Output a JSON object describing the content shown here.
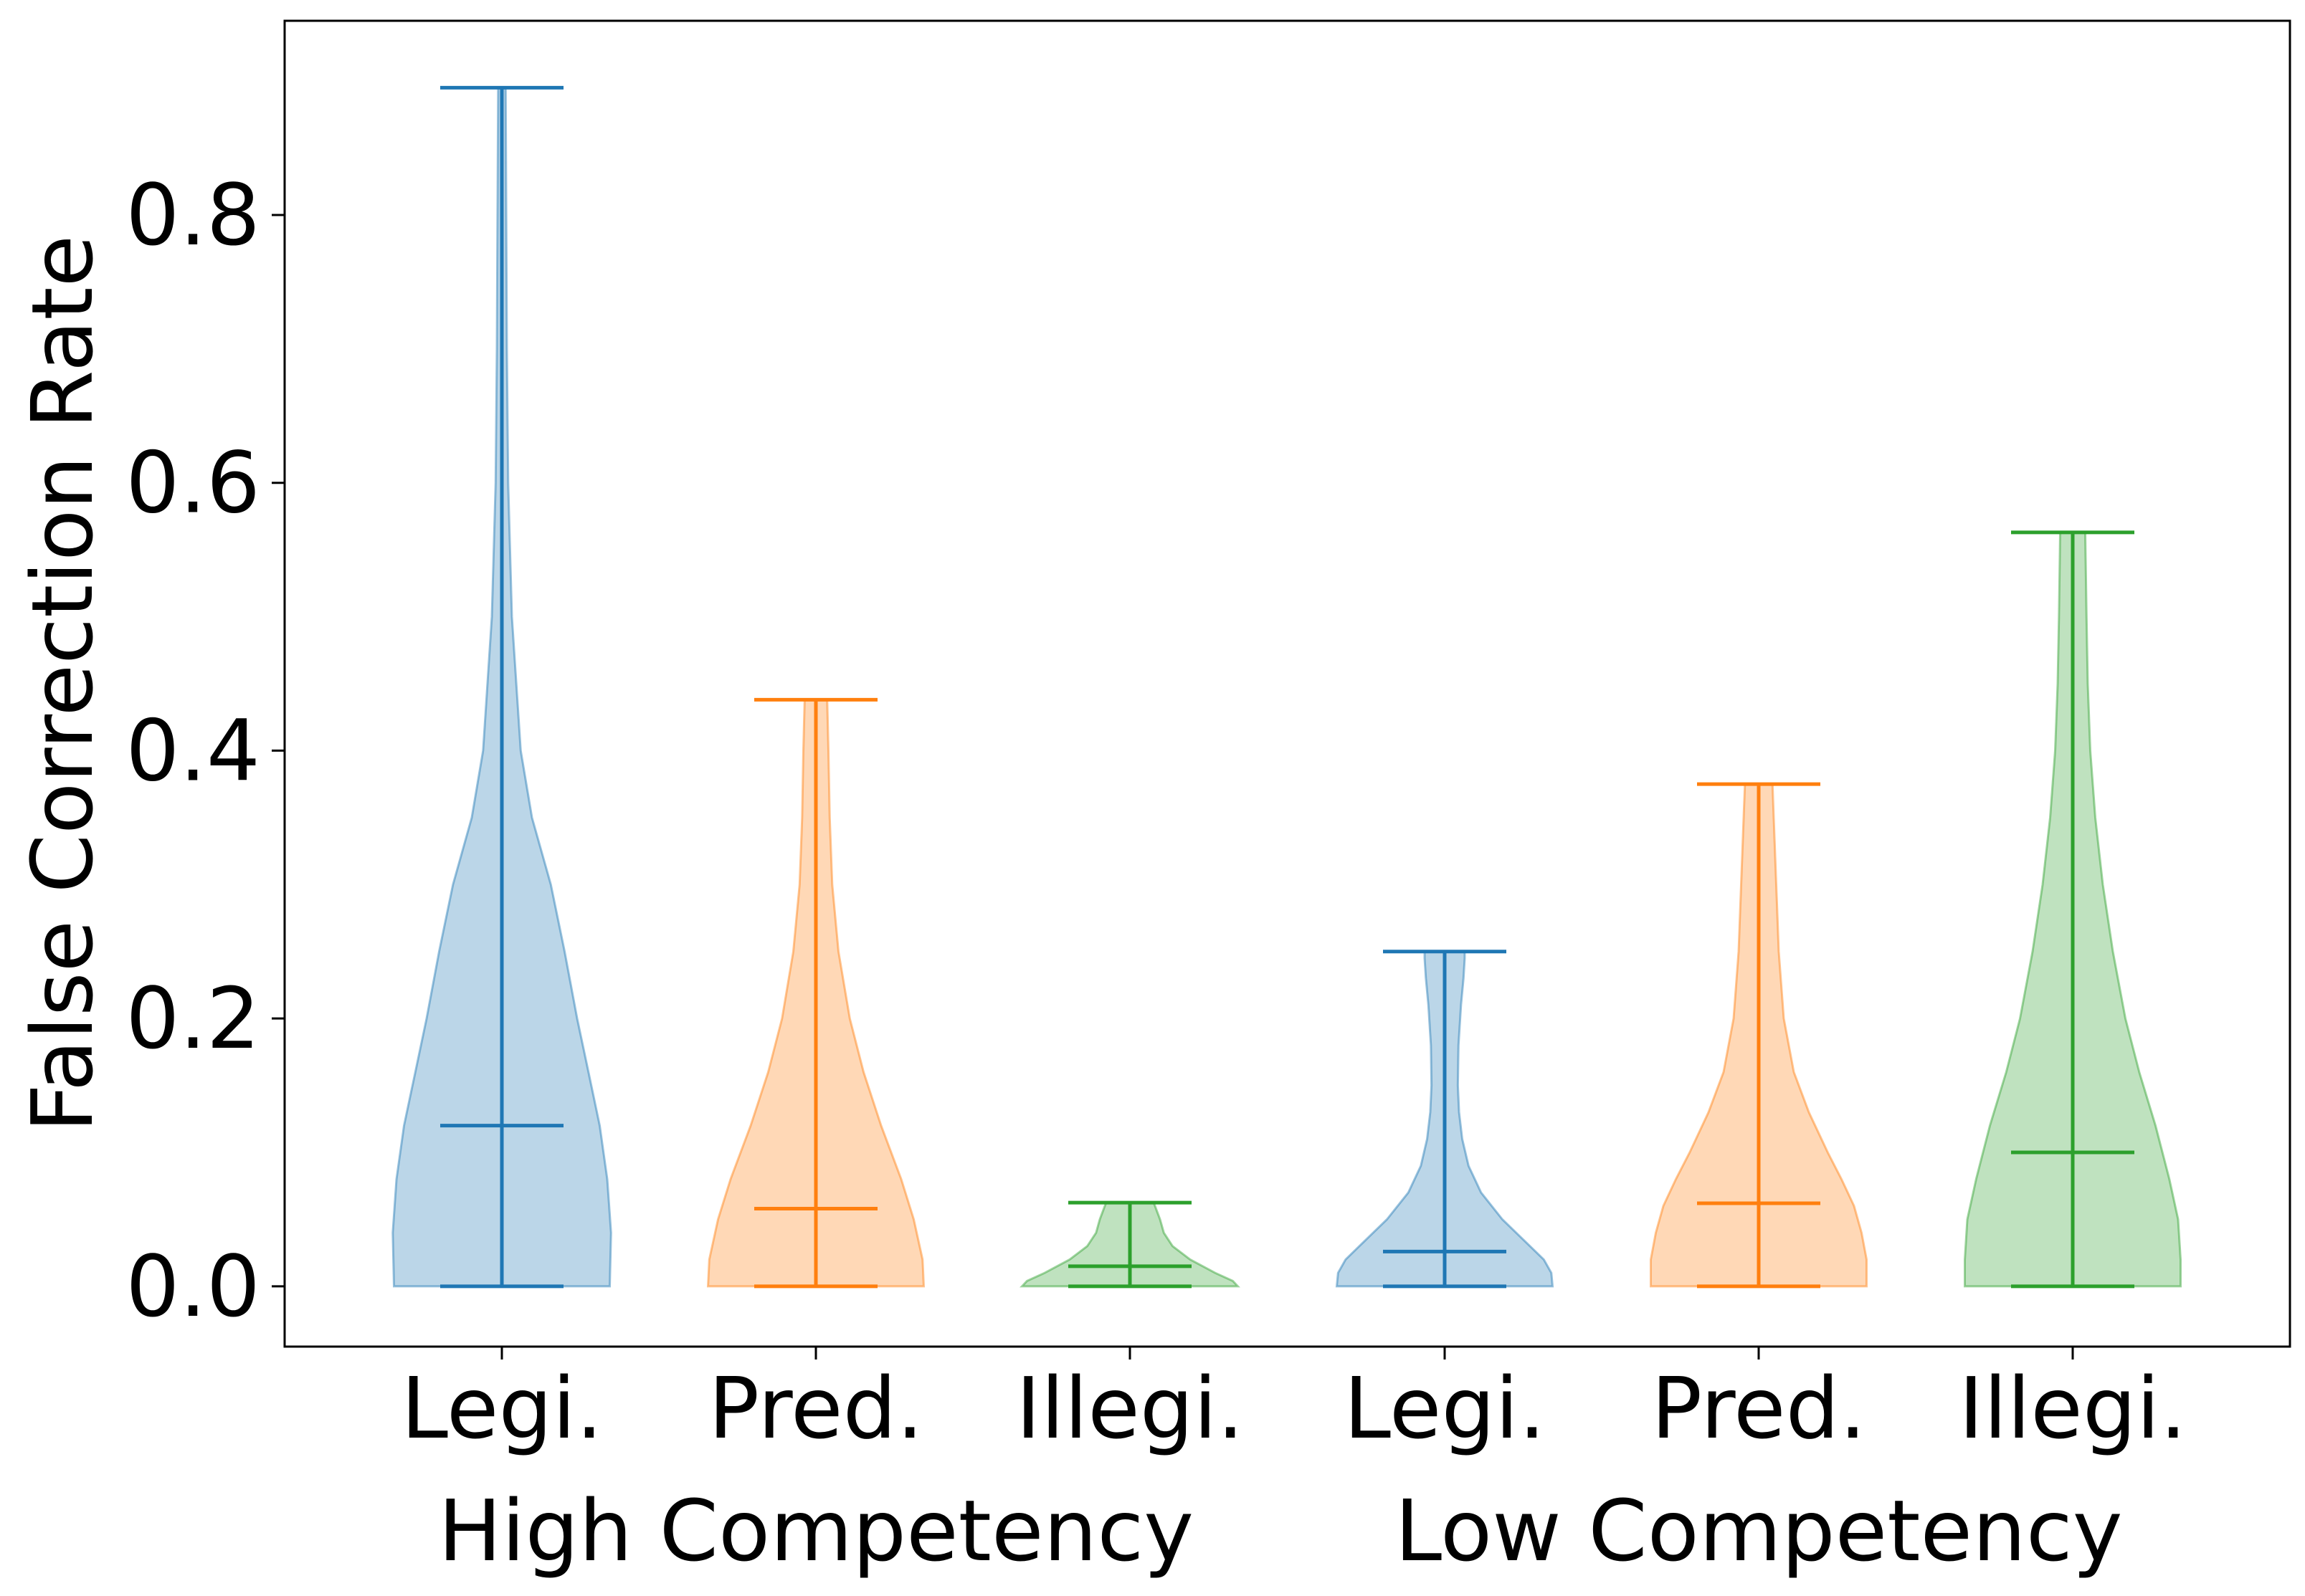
{
  "chart_data": {
    "type": "violin",
    "ylabel": "False Correction Rate",
    "ylim": [
      -0.045,
      0.945
    ],
    "yticks": [
      "0.0",
      "0.2",
      "0.4",
      "0.6",
      "0.8"
    ],
    "ytick_values": [
      0.0,
      0.2,
      0.4,
      0.6,
      0.8
    ],
    "grid": false,
    "groups": [
      {
        "label": "High Competency",
        "categories": [
          0,
          1,
          2
        ]
      },
      {
        "label": "Low Competency",
        "categories": [
          3,
          4,
          5
        ]
      }
    ],
    "categories": [
      "Legi.",
      "Pred.",
      "Illegi.",
      "Legi.",
      "Pred.",
      "Illegi."
    ],
    "violins": [
      {
        "category": "Legi.",
        "group": "High Competency",
        "color": "#1f77b4",
        "min": 0.0,
        "max": 0.895,
        "mean": 0.12,
        "profile": [
          [
            0.0,
            0.86
          ],
          [
            0.04,
            0.87
          ],
          [
            0.08,
            0.84
          ],
          [
            0.12,
            0.78
          ],
          [
            0.16,
            0.69
          ],
          [
            0.2,
            0.6
          ],
          [
            0.25,
            0.5
          ],
          [
            0.3,
            0.39
          ],
          [
            0.35,
            0.24
          ],
          [
            0.4,
            0.15
          ],
          [
            0.5,
            0.08
          ],
          [
            0.6,
            0.05
          ],
          [
            0.7,
            0.04
          ],
          [
            0.8,
            0.035
          ],
          [
            0.895,
            0.03
          ]
        ]
      },
      {
        "category": "Pred.",
        "group": "High Competency",
        "color": "#ff7f0e",
        "min": 0.0,
        "max": 0.438,
        "mean": 0.058,
        "profile": [
          [
            0.0,
            0.86
          ],
          [
            0.02,
            0.85
          ],
          [
            0.05,
            0.78
          ],
          [
            0.08,
            0.68
          ],
          [
            0.12,
            0.52
          ],
          [
            0.16,
            0.38
          ],
          [
            0.2,
            0.27
          ],
          [
            0.25,
            0.18
          ],
          [
            0.3,
            0.13
          ],
          [
            0.35,
            0.11
          ],
          [
            0.4,
            0.1
          ],
          [
            0.438,
            0.09
          ]
        ]
      },
      {
        "category": "Illegi.",
        "group": "High Competency",
        "color": "#2ca02c",
        "min": 0.0,
        "max": 0.0625,
        "mean": 0.015,
        "profile": [
          [
            0.0,
            0.86
          ],
          [
            0.004,
            0.82
          ],
          [
            0.01,
            0.68
          ],
          [
            0.02,
            0.48
          ],
          [
            0.03,
            0.34
          ],
          [
            0.04,
            0.27
          ],
          [
            0.05,
            0.24
          ],
          [
            0.06,
            0.2
          ],
          [
            0.0625,
            0.19
          ]
        ]
      },
      {
        "category": "Legi.",
        "group": "Low Competency",
        "color": "#1f77b4",
        "min": 0.0,
        "max": 0.25,
        "mean": 0.026,
        "profile": [
          [
            0.0,
            0.86
          ],
          [
            0.01,
            0.85
          ],
          [
            0.02,
            0.79
          ],
          [
            0.03,
            0.68
          ],
          [
            0.05,
            0.46
          ],
          [
            0.07,
            0.29
          ],
          [
            0.09,
            0.19
          ],
          [
            0.11,
            0.14
          ],
          [
            0.13,
            0.115
          ],
          [
            0.15,
            0.105
          ],
          [
            0.18,
            0.11
          ],
          [
            0.21,
            0.13
          ],
          [
            0.23,
            0.15
          ],
          [
            0.245,
            0.16
          ],
          [
            0.25,
            0.16
          ]
        ]
      },
      {
        "category": "Pred.",
        "group": "Low Competency",
        "color": "#ff7f0e",
        "min": 0.0,
        "max": 0.375,
        "mean": 0.062,
        "profile": [
          [
            0.0,
            0.86
          ],
          [
            0.02,
            0.86
          ],
          [
            0.04,
            0.82
          ],
          [
            0.06,
            0.76
          ],
          [
            0.08,
            0.66
          ],
          [
            0.1,
            0.55
          ],
          [
            0.13,
            0.4
          ],
          [
            0.16,
            0.28
          ],
          [
            0.2,
            0.2
          ],
          [
            0.25,
            0.16
          ],
          [
            0.3,
            0.14
          ],
          [
            0.35,
            0.12
          ],
          [
            0.375,
            0.11
          ]
        ]
      },
      {
        "category": "Illegi.",
        "group": "Low Competency",
        "color": "#2ca02c",
        "min": 0.0,
        "max": 0.563,
        "mean": 0.1,
        "profile": [
          [
            0.0,
            0.86
          ],
          [
            0.02,
            0.86
          ],
          [
            0.05,
            0.84
          ],
          [
            0.08,
            0.77
          ],
          [
            0.12,
            0.66
          ],
          [
            0.16,
            0.53
          ],
          [
            0.2,
            0.42
          ],
          [
            0.25,
            0.32
          ],
          [
            0.3,
            0.24
          ],
          [
            0.35,
            0.18
          ],
          [
            0.4,
            0.14
          ],
          [
            0.45,
            0.12
          ],
          [
            0.5,
            0.11
          ],
          [
            0.563,
            0.1
          ]
        ]
      }
    ]
  }
}
